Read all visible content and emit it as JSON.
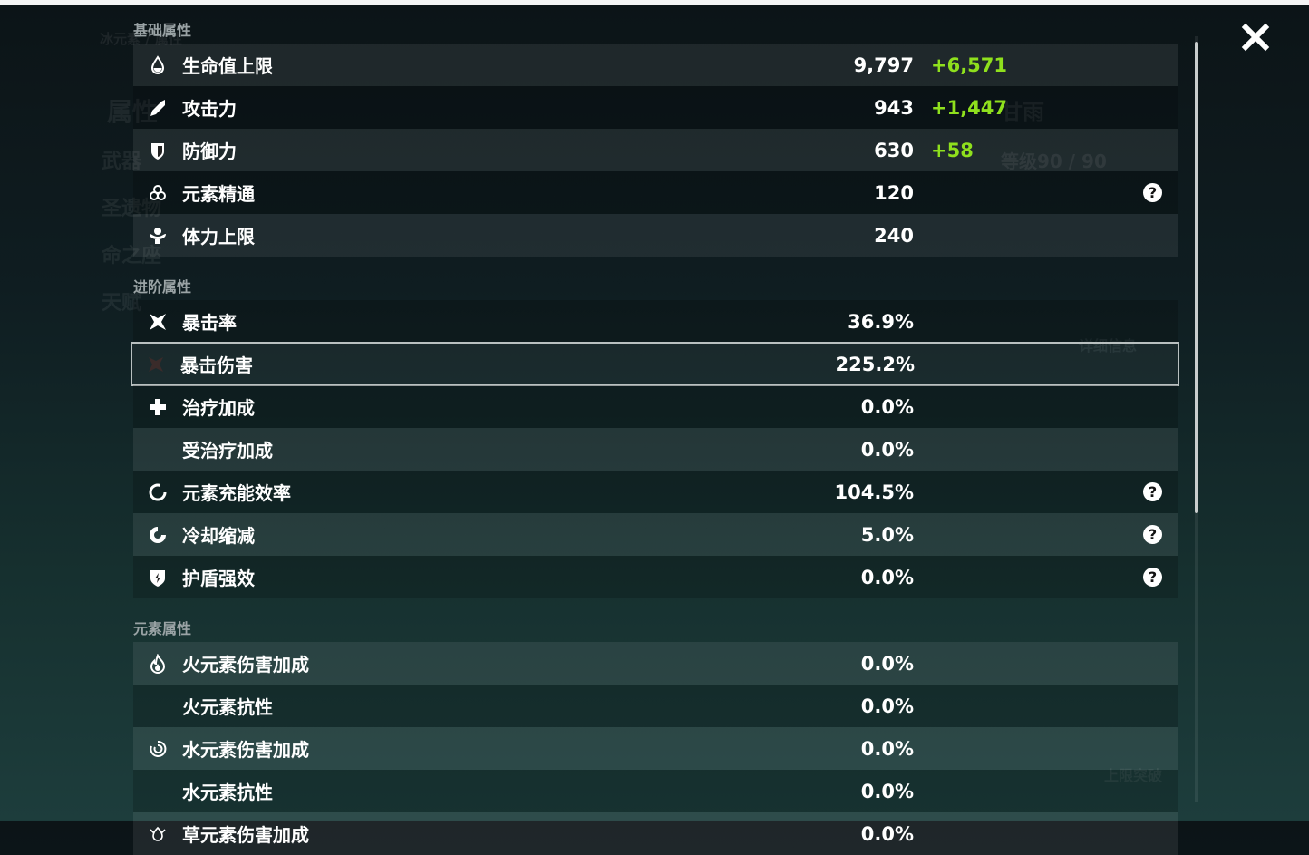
{
  "background": {
    "character_name": "甘雨",
    "level": "等级90 / 90",
    "detail_button": "详细信息",
    "breakthrough_button": "上限突破",
    "tab_attributes": "属性",
    "tab_weapon": "武器",
    "tab_artifacts": "圣遗物",
    "tab_constellation": "命之座",
    "tab_talents": "天赋",
    "element_label": "冰元素 / 属性"
  },
  "sections": [
    {
      "title": "基础属性",
      "rows": [
        {
          "icon": "hp-drop-icon",
          "name": "生命值上限",
          "value": "9,797",
          "bonus": "+6,571",
          "help": false
        },
        {
          "icon": "sword-icon",
          "name": "攻击力",
          "value": "943",
          "bonus": "+1,447",
          "help": false
        },
        {
          "icon": "shield-icon",
          "name": "防御力",
          "value": "630",
          "bonus": "+58",
          "help": false
        },
        {
          "icon": "elemental-mastery-icon",
          "name": "元素精通",
          "value": "120",
          "bonus": "",
          "help": true
        },
        {
          "icon": "stamina-icon",
          "name": "体力上限",
          "value": "240",
          "bonus": "",
          "help": false
        }
      ]
    },
    {
      "title": "进阶属性",
      "rows": [
        {
          "icon": "crit-rate-icon",
          "name": "暴击率",
          "value": "36.9%",
          "bonus": "",
          "help": false
        },
        {
          "icon": "crit-dmg-icon",
          "name": "暴击伤害",
          "value": "225.2%",
          "bonus": "",
          "help": false,
          "selected": true
        },
        {
          "icon": "healing-cross-icon",
          "name": "治疗加成",
          "value": "0.0%",
          "bonus": "",
          "help": false
        },
        {
          "icon": "",
          "name": "受治疗加成",
          "value": "0.0%",
          "bonus": "",
          "help": false
        },
        {
          "icon": "energy-recharge-icon",
          "name": "元素充能效率",
          "value": "104.5%",
          "bonus": "",
          "help": true
        },
        {
          "icon": "cooldown-icon",
          "name": "冷却缩减",
          "value": "5.0%",
          "bonus": "",
          "help": true
        },
        {
          "icon": "shield-strength-icon",
          "name": "护盾强效",
          "value": "0.0%",
          "bonus": "",
          "help": true
        }
      ]
    },
    {
      "title": "元素属性",
      "rows": [
        {
          "icon": "pyro-icon",
          "name": "火元素伤害加成",
          "value": "0.0%",
          "bonus": "",
          "help": false
        },
        {
          "icon": "",
          "name": "火元素抗性",
          "value": "0.0%",
          "bonus": "",
          "help": false
        },
        {
          "icon": "hydro-icon",
          "name": "水元素伤害加成",
          "value": "0.0%",
          "bonus": "",
          "help": false
        },
        {
          "icon": "",
          "name": "水元素抗性",
          "value": "0.0%",
          "bonus": "",
          "help": false
        },
        {
          "icon": "dendro-icon",
          "name": "草元素伤害加成",
          "value": "0.0%",
          "bonus": "",
          "help": false
        }
      ]
    }
  ],
  "help_symbol": "?",
  "colors": {
    "bonus": "#8fe01d",
    "selected_border": "#b9c0c0"
  }
}
